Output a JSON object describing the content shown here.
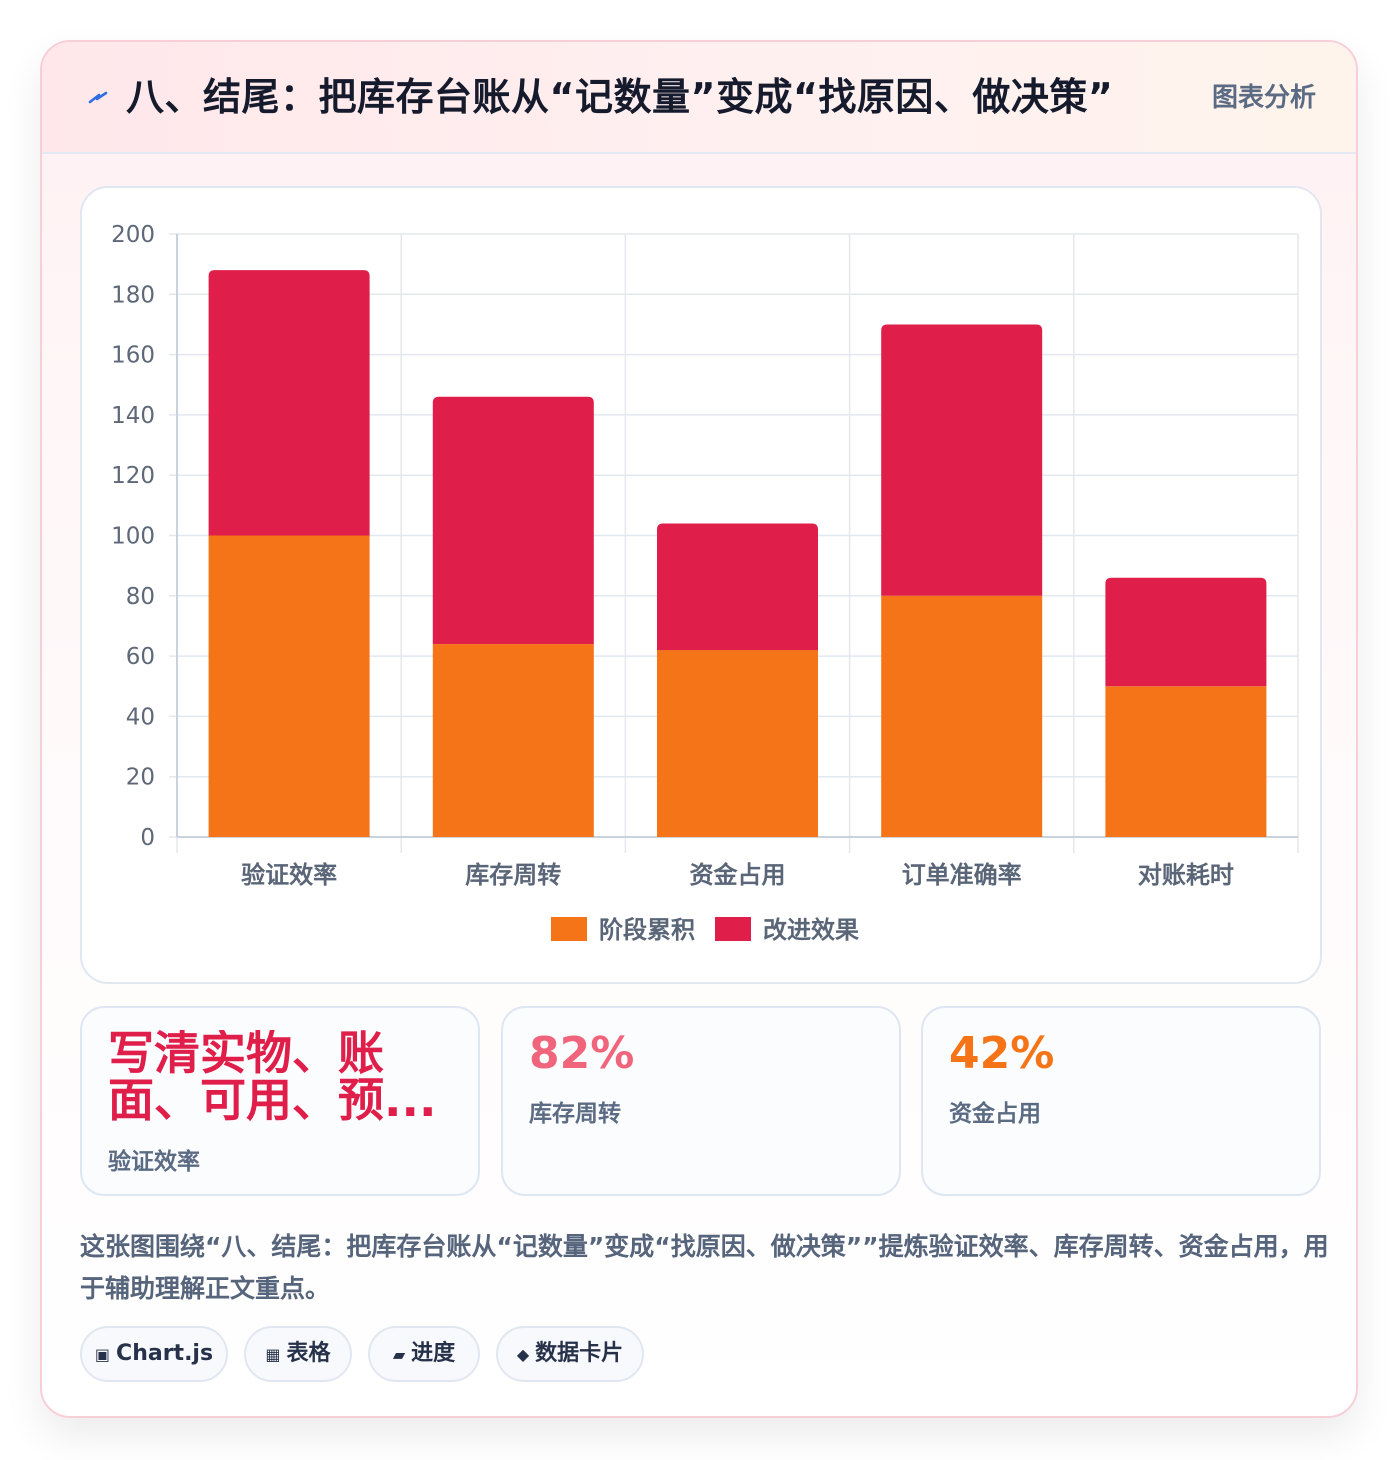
{
  "header": {
    "title": "八、结尾：把库存台账从“记数量”变成“找原因、做决策”",
    "tag": "图表分析",
    "icon": "lightning-icon"
  },
  "chart_data": {
    "type": "bar",
    "stacked": true,
    "categories": [
      "验证效率",
      "库存周转",
      "资金占用",
      "订单准确率",
      "对账耗时"
    ],
    "series": [
      {
        "name": "阶段累积",
        "color": "#f57418",
        "values": [
          100,
          64,
          62,
          80,
          50
        ]
      },
      {
        "name": "改进效果",
        "color": "#df1e4a",
        "values": [
          88,
          82,
          42,
          90,
          36
        ]
      }
    ],
    "ylim": [
      0,
      200
    ],
    "yticks": [
      0,
      20,
      40,
      60,
      80,
      100,
      120,
      140,
      160,
      180,
      200
    ],
    "grid": true,
    "legend": "bottom"
  },
  "stats": [
    {
      "value": "写清实物、账面、可用、预...",
      "label": "验证效率",
      "color": "#df1e4a"
    },
    {
      "value": "82%",
      "label": "库存周转",
      "color": "#f0657c"
    },
    {
      "value": "42%",
      "label": "资金占用",
      "color": "#f57418"
    }
  ],
  "description": "这张图围绕“八、结尾：把库存台账从“记数量”变成“找原因、做决策””提炼验证效率、库存周转、资金占用，用于辅助理解正文重点。",
  "pills": [
    {
      "icon": "chart-icon",
      "glyph": "▣",
      "label": "Chart.js"
    },
    {
      "icon": "table-icon",
      "glyph": "▦",
      "label": "表格"
    },
    {
      "icon": "progress-icon",
      "glyph": "▰",
      "label": "进度"
    },
    {
      "icon": "diamond-icon",
      "glyph": "◆",
      "label": "数据卡片"
    }
  ]
}
